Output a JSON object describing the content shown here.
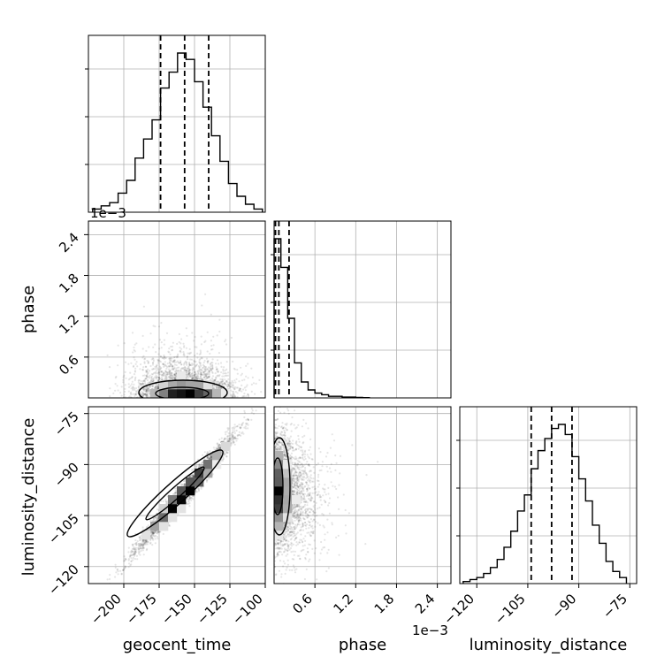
{
  "chart_data": {
    "type": "corner",
    "parameters": [
      "geocent_time",
      "phase",
      "luminosity_distance"
    ],
    "axis_labels": {
      "geocent_time": "geocent_time",
      "phase": "phase",
      "luminosity_distance": "luminosity_distance"
    },
    "ranges": {
      "geocent_time": [
        -225,
        -100
      ],
      "phase": [
        0,
        0.0026
      ],
      "luminosity_distance": [
        -125,
        -73
      ]
    },
    "ticks": {
      "geocent_time": {
        "values": [
          -200,
          -175,
          -150,
          -125,
          -100
        ],
        "labels": [
          "−200",
          "−175",
          "−150",
          "−125",
          "−100"
        ]
      },
      "phase": {
        "values": [
          0.0006,
          0.0012,
          0.0018,
          0.0024
        ],
        "labels": [
          "0.6",
          "1.2",
          "1.8",
          "2.4"
        ],
        "offset_text": "1e−3"
      },
      "luminosity_distance": {
        "values": [
          -120,
          -105,
          -90,
          -75
        ],
        "labels": [
          "−120",
          "−105",
          "−90",
          "−75"
        ]
      }
    },
    "grid": true,
    "quantile_lines": {
      "geocent_time": [
        -174,
        -157,
        -140
      ],
      "phase": [
        2e-05,
        7e-05,
        0.00022
      ],
      "luminosity_distance": [
        -104,
        -98,
        -92
      ]
    },
    "histograms": {
      "geocent_time": {
        "edges": [
          -222,
          -216,
          -210,
          -204,
          -198,
          -192,
          -186,
          -180,
          -174,
          -168,
          -162,
          -156,
          -150,
          -144,
          -138,
          -132,
          -126,
          -120,
          -114,
          -108,
          -102
        ],
        "counts": [
          2,
          4,
          6,
          12,
          20,
          34,
          46,
          58,
          78,
          88,
          100,
          96,
          82,
          66,
          48,
          32,
          18,
          10,
          5,
          2
        ]
      },
      "phase": {
        "edges": [
          0,
          0.0001,
          0.0002,
          0.0003,
          0.0004,
          0.0005,
          0.0006,
          0.0007,
          0.0008,
          0.0009,
          0.001,
          0.0011,
          0.0012,
          0.0013,
          0.0014
        ],
        "counts": [
          100,
          82,
          50,
          22,
          10,
          5,
          3,
          2,
          1,
          1,
          0.5,
          0.5,
          0.3,
          0.2
        ]
      },
      "luminosity_distance": {
        "edges": [
          -124,
          -122,
          -120,
          -118,
          -116,
          -114,
          -112,
          -110,
          -108,
          -106,
          -104,
          -102,
          -100,
          -98,
          -96,
          -94,
          -92,
          -90,
          -88,
          -86,
          -84,
          -82,
          -80,
          -78,
          -76
        ],
        "counts": [
          1,
          2,
          3,
          5,
          8,
          12,
          18,
          26,
          36,
          44,
          57,
          66,
          72,
          77,
          79,
          74,
          63,
          52,
          41,
          29,
          20,
          11,
          6,
          3
        ]
      }
    },
    "scatter_relations": {
      "geocent_time_vs_phase": {
        "center_x": -157,
        "center_y": 0.00012,
        "note_free": true
      },
      "geocent_time_vs_luminosity_distance": {
        "slope": 0.48,
        "intercept": -23
      },
      "phase_vs_luminosity_distance": {
        "center_x": 0.0001,
        "center_y": -98
      }
    }
  }
}
